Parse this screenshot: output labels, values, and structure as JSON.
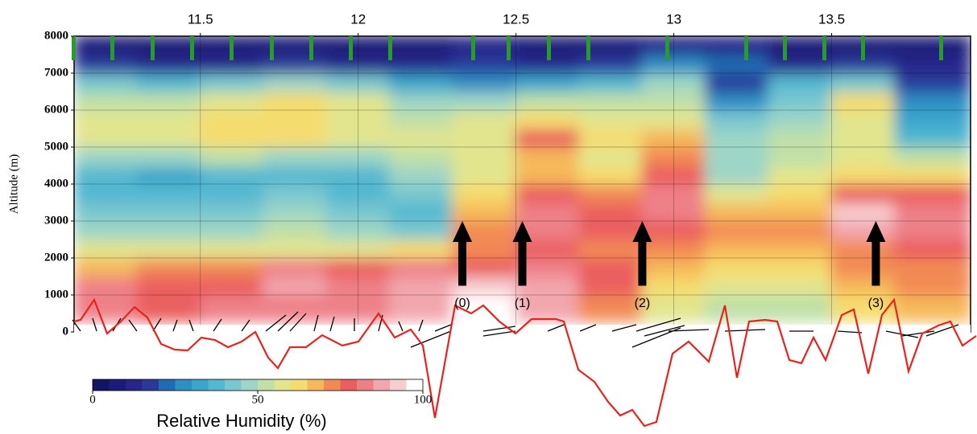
{
  "chart_data": {
    "type": "heatmap",
    "y_label": "Altitude (m)",
    "colorbar_label": "Relative Humidity (%)",
    "xlim": [
      11.1,
      13.94
    ],
    "xticks": [
      11.5,
      12.0,
      12.5,
      13.0,
      13.5
    ],
    "ylim": [
      0,
      8000
    ],
    "yticks": [
      0,
      1000,
      2000,
      3000,
      4000,
      5000,
      6000,
      7000,
      8000
    ],
    "grid": true,
    "x_edges": [
      11.1,
      11.3,
      11.5,
      11.7,
      11.9,
      12.1,
      12.3,
      12.5,
      12.7,
      12.9,
      13.1,
      13.3,
      13.5,
      13.7,
      13.94
    ],
    "y_edges": [
      300,
      1000,
      1500,
      2000,
      2500,
      3000,
      3500,
      4000,
      4500,
      5000,
      5500,
      6000,
      6500,
      7000,
      7500,
      8000
    ],
    "z": [
      [
        80,
        78,
        80,
        82,
        80,
        85,
        95,
        85,
        70,
        55,
        50,
        50,
        60,
        65
      ],
      [
        82,
        78,
        75,
        85,
        82,
        88,
        92,
        88,
        75,
        60,
        55,
        55,
        65,
        70
      ],
      [
        65,
        70,
        72,
        80,
        75,
        80,
        75,
        80,
        75,
        65,
        60,
        60,
        70,
        70
      ],
      [
        55,
        55,
        55,
        58,
        55,
        62,
        70,
        75,
        72,
        70,
        65,
        65,
        72,
        75
      ],
      [
        45,
        45,
        48,
        50,
        48,
        40,
        70,
        80,
        78,
        75,
        70,
        70,
        85,
        80
      ],
      [
        40,
        40,
        42,
        45,
        42,
        35,
        65,
        80,
        75,
        80,
        65,
        65,
        90,
        80
      ],
      [
        35,
        35,
        38,
        40,
        38,
        40,
        60,
        75,
        70,
        80,
        55,
        60,
        75,
        75
      ],
      [
        35,
        32,
        35,
        38,
        35,
        45,
        55,
        65,
        60,
        75,
        45,
        55,
        60,
        60
      ],
      [
        45,
        45,
        50,
        48,
        48,
        50,
        55,
        65,
        55,
        70,
        45,
        50,
        55,
        50
      ],
      [
        55,
        58,
        60,
        62,
        55,
        55,
        55,
        75,
        60,
        65,
        45,
        50,
        55,
        35
      ],
      [
        55,
        58,
        62,
        60,
        55,
        50,
        55,
        60,
        55,
        55,
        40,
        45,
        55,
        30
      ],
      [
        50,
        52,
        55,
        60,
        55,
        45,
        45,
        50,
        50,
        50,
        25,
        40,
        60,
        25
      ],
      [
        40,
        35,
        40,
        45,
        40,
        30,
        25,
        30,
        35,
        45,
        15,
        35,
        40,
        15
      ],
      [
        15,
        10,
        10,
        15,
        10,
        10,
        15,
        10,
        15,
        25,
        20,
        10,
        15,
        10
      ],
      [
        8,
        5,
        5,
        5,
        5,
        5,
        10,
        5,
        5,
        10,
        10,
        5,
        5,
        5
      ]
    ],
    "clim": [
      0,
      100
    ],
    "cticks": [
      0,
      50,
      100
    ],
    "colors": [
      "#141464",
      "#1c1c78",
      "#25258a",
      "#2b3a9a",
      "#1e6db4",
      "#2e8fc4",
      "#3aa6cc",
      "#55b8d0",
      "#79c8cf",
      "#9dd5c6",
      "#c0e0a8",
      "#e2e58e",
      "#f5dc6e",
      "#f6b85a",
      "#f28a55",
      "#ea5e5e",
      "#ee8088",
      "#f2a6ad",
      "#f7cdd0",
      "#ffffff"
    ],
    "annotations": [
      {
        "label": "(0)",
        "x": 12.33
      },
      {
        "label": "(1)",
        "x": 12.52
      },
      {
        "label": "(2)",
        "x": 12.9
      },
      {
        "label": "(3)",
        "x": 13.64
      }
    ]
  }
}
